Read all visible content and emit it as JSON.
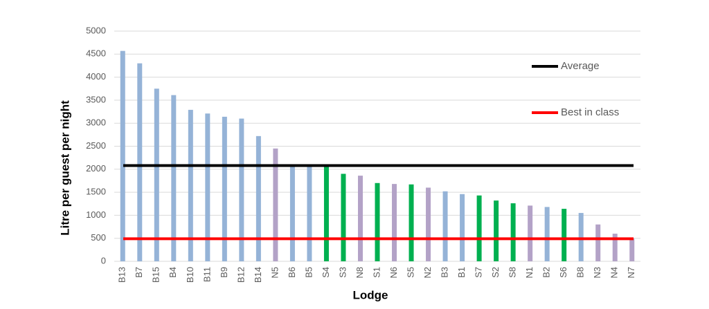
{
  "chart_data": {
    "type": "bar",
    "x_label": "Lodge",
    "y_label": "Litre per guest per night",
    "categories": [
      "B13",
      "B7",
      "B15",
      "B4",
      "B10",
      "B11",
      "B9",
      "B12",
      "B14",
      "N5",
      "B6",
      "B5",
      "S4",
      "S3",
      "N8",
      "S1",
      "N6",
      "S5",
      "N2",
      "B3",
      "B1",
      "S7",
      "S2",
      "S8",
      "N1",
      "B2",
      "S6",
      "B8",
      "N3",
      "N4",
      "N7"
    ],
    "values": [
      4570,
      4300,
      3750,
      3610,
      3290,
      3210,
      3140,
      3100,
      2720,
      2450,
      2100,
      2080,
      2070,
      1900,
      1860,
      1700,
      1680,
      1670,
      1600,
      1520,
      1460,
      1430,
      1320,
      1260,
      1210,
      1180,
      1140,
      1050,
      800,
      600,
      495
    ],
    "colors": [
      "#95b3d7",
      "#95b3d7",
      "#95b3d7",
      "#95b3d7",
      "#95b3d7",
      "#95b3d7",
      "#95b3d7",
      "#95b3d7",
      "#95b3d7",
      "#b3a2c7",
      "#95b3d7",
      "#95b3d7",
      "#00b050",
      "#00b050",
      "#b3a2c7",
      "#00b050",
      "#b3a2c7",
      "#00b050",
      "#b3a2c7",
      "#95b3d7",
      "#95b3d7",
      "#00b050",
      "#00b050",
      "#00b050",
      "#b3a2c7",
      "#95b3d7",
      "#00b050",
      "#95b3d7",
      "#b3a2c7",
      "#b3a2c7",
      "#b3a2c7"
    ],
    "reference_lines": [
      {
        "name": "Average",
        "value": 2080,
        "color": "#000000"
      },
      {
        "name": "Best in class",
        "value": 490,
        "color": "#ff0000"
      }
    ],
    "ylim": [
      0,
      5000
    ],
    "yticks": [
      0,
      500,
      1000,
      1500,
      2000,
      2500,
      3000,
      3500,
      4000,
      4500,
      5000
    ],
    "grid": true
  }
}
